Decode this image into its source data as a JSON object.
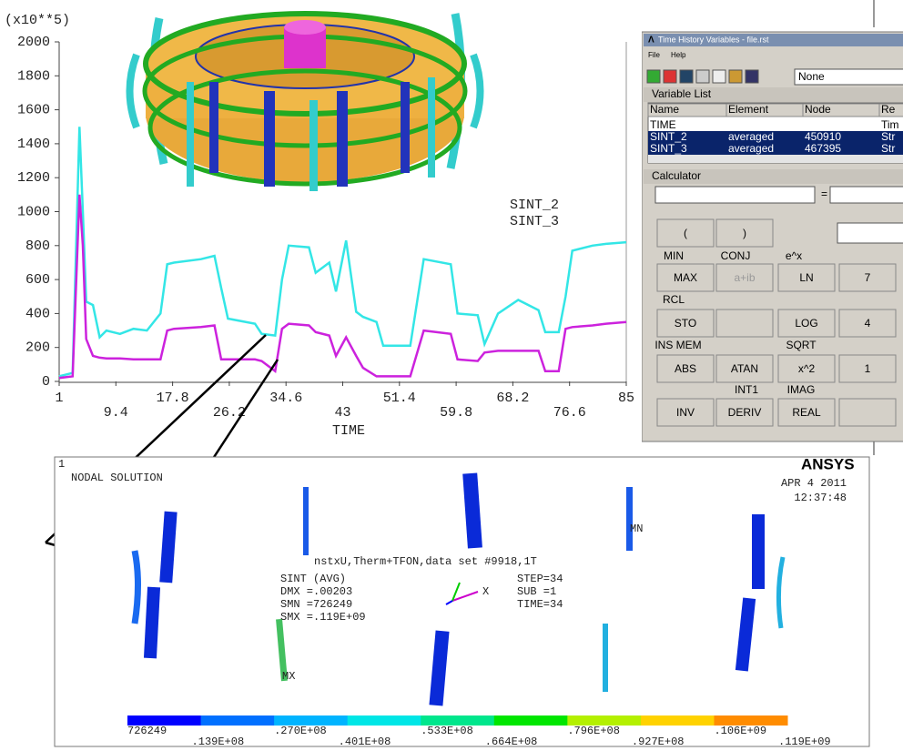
{
  "chart_data": {
    "type": "line",
    "annotation": "(x10**5)",
    "x_label": "TIME",
    "x": [
      1,
      3,
      4,
      4.5,
      5,
      6,
      7,
      8,
      10,
      12,
      14,
      16,
      17,
      18,
      22,
      24,
      25,
      26,
      30,
      31,
      33,
      34,
      35,
      38,
      39,
      41,
      42,
      43.5,
      45,
      46,
      48,
      49,
      53,
      55,
      59,
      60,
      63,
      64,
      66,
      69,
      72,
      73,
      75,
      76,
      77,
      80,
      82,
      85
    ],
    "series": [
      {
        "name": "SINT_2",
        "color": "#33e6e6",
        "values": [
          30,
          50,
          1500,
          1000,
          470,
          450,
          260,
          300,
          280,
          310,
          300,
          400,
          690,
          700,
          720,
          740,
          550,
          370,
          340,
          280,
          270,
          600,
          800,
          790,
          640,
          700,
          530,
          830,
          410,
          380,
          350,
          210,
          210,
          720,
          690,
          400,
          390,
          220,
          400,
          480,
          420,
          290,
          290,
          500,
          770,
          800,
          810,
          820
        ]
      },
      {
        "name": "SINT_3",
        "color": "#cc22dd",
        "values": [
          20,
          30,
          1100,
          800,
          250,
          150,
          140,
          135,
          135,
          130,
          130,
          130,
          300,
          310,
          320,
          330,
          130,
          130,
          130,
          120,
          60,
          310,
          340,
          330,
          290,
          270,
          150,
          260,
          150,
          80,
          30,
          30,
          30,
          300,
          280,
          130,
          120,
          170,
          180,
          180,
          180,
          60,
          60,
          310,
          320,
          330,
          340,
          350
        ]
      }
    ],
    "xlim": [
      1,
      85
    ],
    "xticks": [
      1,
      9.4,
      17.8,
      26.2,
      34.6,
      43,
      51.4,
      59.8,
      68.2,
      76.6,
      85
    ],
    "ylim": [
      0,
      2000
    ],
    "yticks": [
      0,
      200,
      400,
      600,
      800,
      1000,
      1200,
      1400,
      1600,
      1800,
      2000
    ],
    "grid": false
  },
  "dialog": {
    "title": "Time History Variables - file.rst",
    "menu": [
      "File",
      "Help"
    ],
    "dropdown": "None",
    "variable_list": "Variable List",
    "columns": [
      "Name",
      "Element",
      "Node",
      "Re"
    ],
    "rows": [
      {
        "name": "TIME",
        "result": "Tim"
      },
      {
        "name": "SINT_2",
        "element": "averaged",
        "node": 450910,
        "result": "Str"
      },
      {
        "name": "SINT_3",
        "element": "averaged",
        "node": 467395,
        "result": "Str"
      }
    ],
    "calculator": "Calculator",
    "equals": "=",
    "buttons": [
      "(",
      ")",
      "MAX",
      "a+ib",
      "LN",
      "7",
      "STO",
      "LOG",
      "4",
      "ABS",
      "ATAN",
      "x^2",
      "1",
      "INV",
      "DERIV",
      "REAL"
    ],
    "labels": [
      "MIN",
      "CONJ",
      "e^x",
      "RCL",
      "INS MEM",
      "SQRT",
      "INT1",
      "IMAG"
    ]
  },
  "contour_plot": {
    "window": "1",
    "heading": "NODAL SOLUTION",
    "logo": "ANSYS",
    "date": "APR  4 2011",
    "time": "12:37:48",
    "subtitle": "nstxU,Therm+TFON,data set #9918,1T",
    "info_left": [
      "SINT     (AVG)",
      "DMX =.00203",
      "SMN =726249",
      "SMX =.119E+09"
    ],
    "info_right": [
      "STEP=34",
      "SUB =1",
      "TIME=34"
    ],
    "min_marker": "MN",
    "max_marker": "MX",
    "axis": "X",
    "legend_colors": [
      "#0000ff",
      "#0070ff",
      "#00b4ff",
      "#00e6e6",
      "#00e68c",
      "#00e600",
      "#b4f000",
      "#ffd200",
      "#ff8c00",
      "#ff0000"
    ],
    "legend_labels": [
      "726249",
      ".139E+08",
      ".270E+08",
      ".401E+08",
      ".533E+08",
      ".664E+08",
      ".796E+08",
      ".927E+08",
      ".106E+09",
      ".119E+09"
    ]
  }
}
